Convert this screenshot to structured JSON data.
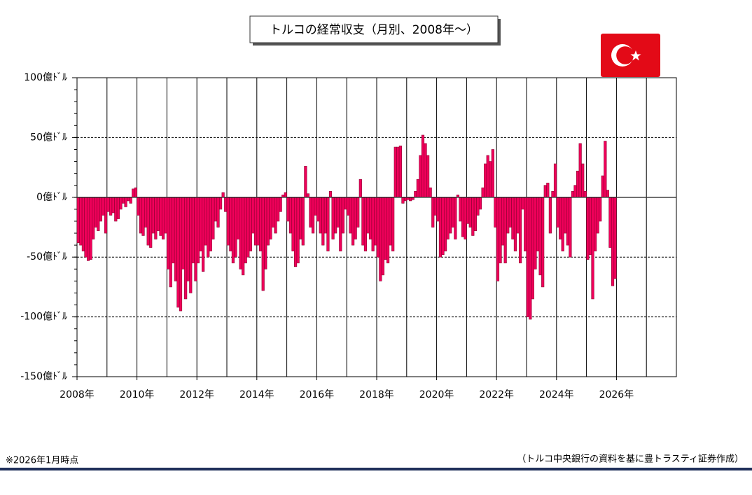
{
  "chart_data": {
    "type": "bar",
    "title": "トルコの経常収支（月別、2008年～）",
    "note": "※2026年1月時点",
    "source": "（トルコ中央銀行の資料を基に豊トラスティ証券作成）",
    "color": "#f0005a",
    "edge_color": "#8a0030",
    "negative_tick_color": "#e60000",
    "grid": true,
    "xgrid_step": 1,
    "yminor_step": 10,
    "xlim": [
      2008,
      2028
    ],
    "xticks": [
      {
        "value": 2008,
        "label": "2008年"
      },
      {
        "value": 2010,
        "label": "2010年"
      },
      {
        "value": 2012,
        "label": "2012年"
      },
      {
        "value": 2014,
        "label": "2014年"
      },
      {
        "value": 2016,
        "label": "2016年"
      },
      {
        "value": 2018,
        "label": "2018年"
      },
      {
        "value": 2020,
        "label": "2020年"
      },
      {
        "value": 2022,
        "label": "2022年"
      },
      {
        "value": 2024,
        "label": "2024年"
      },
      {
        "value": 2026,
        "label": "2026年"
      }
    ],
    "ylim": [
      -150,
      100
    ],
    "yticks": [
      {
        "value": 100,
        "label": "100億ﾄﾞﾙ"
      },
      {
        "value": 50,
        "label": "50億ﾄﾞﾙ"
      },
      {
        "value": 0,
        "label": "0億ﾄﾞﾙ"
      },
      {
        "value": -50,
        "label": "-50億ﾄﾞﾙ"
      },
      {
        "value": -100,
        "label": "-100億ﾄﾞﾙ"
      },
      {
        "value": -150,
        "label": "-150億ﾄﾞﾙ"
      }
    ],
    "x": [
      "2008-01",
      "2008-02",
      "2008-03",
      "2008-04",
      "2008-05",
      "2008-06",
      "2008-07",
      "2008-08",
      "2008-09",
      "2008-10",
      "2008-11",
      "2008-12",
      "2009-01",
      "2009-02",
      "2009-03",
      "2009-04",
      "2009-05",
      "2009-06",
      "2009-07",
      "2009-08",
      "2009-09",
      "2009-10",
      "2009-11",
      "2009-12",
      "2010-01",
      "2010-02",
      "2010-03",
      "2010-04",
      "2010-05",
      "2010-06",
      "2010-07",
      "2010-08",
      "2010-09",
      "2010-10",
      "2010-11",
      "2010-12",
      "2011-01",
      "2011-02",
      "2011-03",
      "2011-04",
      "2011-05",
      "2011-06",
      "2011-07",
      "2011-08",
      "2011-09",
      "2011-10",
      "2011-11",
      "2011-12",
      "2012-01",
      "2012-02",
      "2012-03",
      "2012-04",
      "2012-05",
      "2012-06",
      "2012-07",
      "2012-08",
      "2012-09",
      "2012-10",
      "2012-11",
      "2012-12",
      "2013-01",
      "2013-02",
      "2013-03",
      "2013-04",
      "2013-05",
      "2013-06",
      "2013-07",
      "2013-08",
      "2013-09",
      "2013-10",
      "2013-11",
      "2013-12",
      "2014-01",
      "2014-02",
      "2014-03",
      "2014-04",
      "2014-05",
      "2014-06",
      "2014-07",
      "2014-08",
      "2014-09",
      "2014-10",
      "2014-11",
      "2014-12",
      "2015-01",
      "2015-02",
      "2015-03",
      "2015-04",
      "2015-05",
      "2015-06",
      "2015-07",
      "2015-08",
      "2015-09",
      "2015-10",
      "2015-11",
      "2015-12",
      "2016-01",
      "2016-02",
      "2016-03",
      "2016-04",
      "2016-05",
      "2016-06",
      "2016-07",
      "2016-08",
      "2016-09",
      "2016-10",
      "2016-11",
      "2016-12",
      "2017-01",
      "2017-02",
      "2017-03",
      "2017-04",
      "2017-05",
      "2017-06",
      "2017-07",
      "2017-08",
      "2017-09",
      "2017-10",
      "2017-11",
      "2017-12",
      "2018-01",
      "2018-02",
      "2018-03",
      "2018-04",
      "2018-05",
      "2018-06",
      "2018-07",
      "2018-08",
      "2018-09",
      "2018-10",
      "2018-11",
      "2018-12",
      "2019-01",
      "2019-02",
      "2019-03",
      "2019-04",
      "2019-05",
      "2019-06",
      "2019-07",
      "2019-08",
      "2019-09",
      "2019-10",
      "2019-11",
      "2019-12",
      "2020-01",
      "2020-02",
      "2020-03",
      "2020-04",
      "2020-05",
      "2020-06",
      "2020-07",
      "2020-08",
      "2020-09",
      "2020-10",
      "2020-11",
      "2020-12",
      "2021-01",
      "2021-02",
      "2021-03",
      "2021-04",
      "2021-05",
      "2021-06",
      "2021-07",
      "2021-08",
      "2021-09",
      "2021-10",
      "2021-11",
      "2021-12",
      "2022-01",
      "2022-02",
      "2022-03",
      "2022-04",
      "2022-05",
      "2022-06",
      "2022-07",
      "2022-08",
      "2022-09",
      "2022-10",
      "2022-11",
      "2022-12",
      "2023-01",
      "2023-02",
      "2023-03",
      "2023-04",
      "2023-05",
      "2023-06",
      "2023-07",
      "2023-08",
      "2023-09",
      "2023-10",
      "2023-11",
      "2023-12",
      "2024-01",
      "2024-02",
      "2024-03",
      "2024-04",
      "2024-05",
      "2024-06",
      "2024-07",
      "2024-08",
      "2024-09",
      "2024-10",
      "2024-11",
      "2024-12",
      "2025-01",
      "2025-02",
      "2025-03",
      "2025-04",
      "2025-05",
      "2025-06",
      "2025-07",
      "2025-08",
      "2025-09",
      "2025-10",
      "2025-11",
      "2025-12"
    ],
    "values": [
      -38,
      -40,
      -45,
      -50,
      -53,
      -52,
      -35,
      -25,
      -28,
      -20,
      -15,
      -30,
      -12,
      -15,
      -13,
      -20,
      -18,
      -10,
      -5,
      -8,
      -3,
      -5,
      7,
      8,
      -15,
      -30,
      -32,
      -25,
      -40,
      -42,
      -30,
      -35,
      -28,
      -32,
      -35,
      -30,
      -60,
      -75,
      -55,
      -70,
      -92,
      -95,
      -60,
      -85,
      -70,
      -80,
      -55,
      -70,
      -55,
      -45,
      -62,
      -40,
      -50,
      -45,
      -35,
      -20,
      -25,
      -10,
      4,
      -12,
      -40,
      -45,
      -55,
      -50,
      -35,
      -60,
      -65,
      -55,
      -50,
      -45,
      -30,
      -40,
      -40,
      -45,
      -78,
      -60,
      -40,
      -35,
      -25,
      -30,
      -20,
      -12,
      2,
      4,
      -20,
      -30,
      -45,
      -58,
      -55,
      -35,
      -40,
      26,
      3,
      -25,
      -30,
      -15,
      -20,
      -30,
      -40,
      -30,
      -45,
      5,
      -35,
      -30,
      -25,
      -45,
      -30,
      -10,
      -15,
      -30,
      -40,
      -35,
      -25,
      15,
      -40,
      -45,
      -30,
      -35,
      -45,
      -40,
      -50,
      -70,
      -65,
      -52,
      -55,
      -40,
      -45,
      42,
      42,
      43,
      -5,
      -3,
      -2,
      -3,
      -2,
      5,
      15,
      35,
      52,
      45,
      35,
      8,
      -25,
      -15,
      -20,
      -50,
      -48,
      -45,
      -35,
      -30,
      -25,
      -35,
      2,
      -20,
      -33,
      -35,
      -22,
      -25,
      -32,
      -28,
      -15,
      -10,
      8,
      28,
      35,
      30,
      40,
      -25,
      -70,
      -55,
      -40,
      -55,
      -30,
      -25,
      -35,
      -45,
      -30,
      -55,
      -10,
      -45,
      -100,
      -102,
      -85,
      -60,
      -45,
      -65,
      -75,
      10,
      12,
      -30,
      5,
      28,
      -25,
      -35,
      -45,
      -30,
      -40,
      -50,
      5,
      10,
      22,
      45,
      28,
      5,
      -52,
      -48,
      -85,
      -45,
      -30,
      -20,
      18,
      47,
      6,
      -42,
      -74,
      -68
    ]
  }
}
